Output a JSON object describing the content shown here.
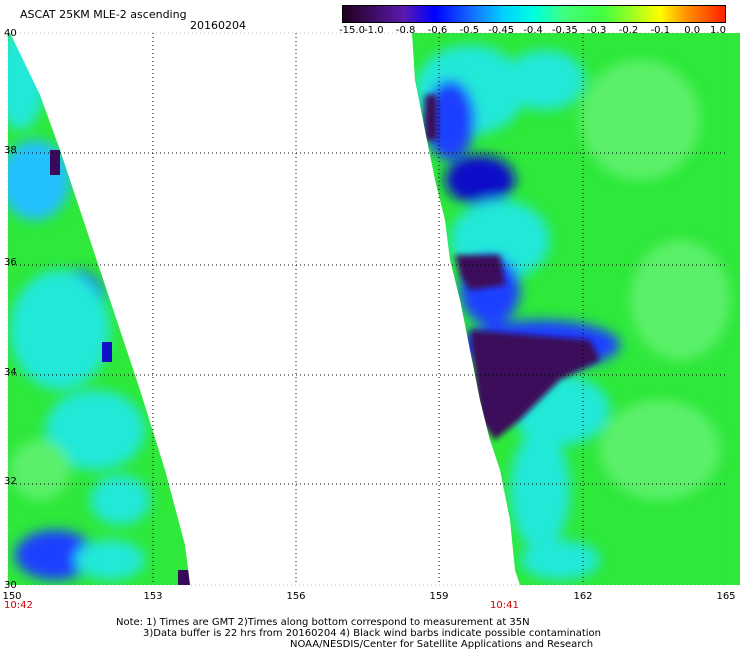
{
  "header": {
    "title": "ASCAT 25KM MLE-2 ascending",
    "date": "20160204"
  },
  "colorbar": {
    "labels": [
      "-15.0",
      "-1.0",
      "-0.8",
      "-0.6",
      "-0.5",
      "-0.45",
      "-0.4",
      "-0.35",
      "-0.3",
      "-0.2",
      "-0.1",
      "0.0",
      "1.0"
    ],
    "colors": [
      "#1a001a",
      "#3a0a5a",
      "#5a1ab0",
      "#0000ff",
      "#1560ff",
      "#00b0ff",
      "#00ffff",
      "#40ff80",
      "#40ff40",
      "#b0ff20",
      "#ffff00",
      "#ff8000",
      "#ff2000"
    ]
  },
  "map": {
    "lat_labels": [
      "40",
      "38",
      "36",
      "34",
      "32",
      "30"
    ],
    "lon_labels": [
      "150",
      "153",
      "156",
      "159",
      "162",
      "165"
    ],
    "times": {
      "left": "10:42",
      "right": "10:41"
    },
    "colors": {
      "outer": "#5ac8f0",
      "main": "#2ee83a",
      "alt": "#5cf06a",
      "cyan": "#20e8d8",
      "blue": "#1a40ff",
      "navy": "#1010c8",
      "dark": "#3a0a5a",
      "black": "#1a0a24",
      "magenta": "#6a30c8"
    }
  },
  "footer": {
    "line1": "Note: 1) Times are GMT 2)Times along bottom correspond to measurement at 35N",
    "line2": "3)Data buffer is 22 hrs from 20160204 4) Black wind barbs indicate possible contamination",
    "line3": "NOAA/NESDIS/Center for Satellite Applications and Research"
  }
}
